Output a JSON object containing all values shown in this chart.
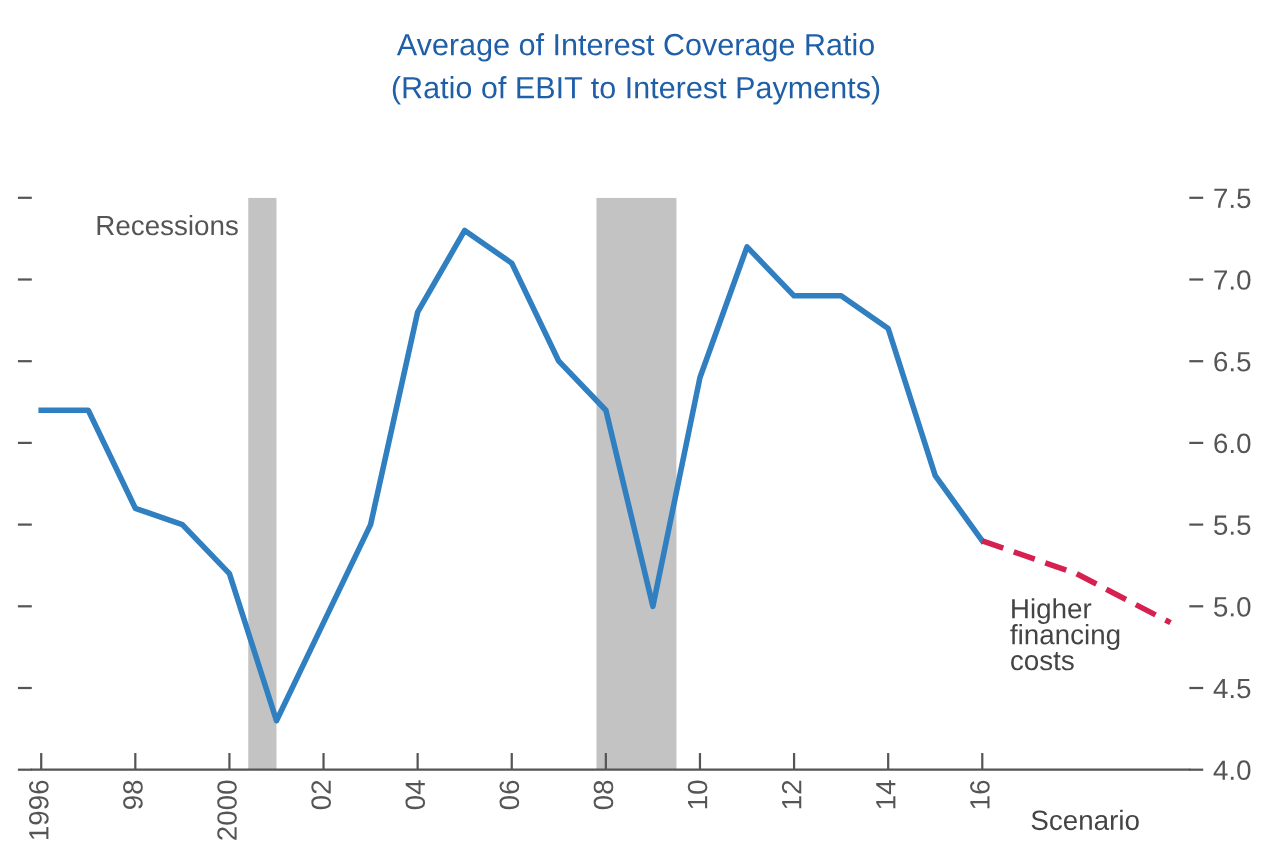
{
  "chart_data": {
    "type": "line",
    "title": "Average of Interest Coverage Ratio",
    "subtitle": "(Ratio of EBIT to Interest Payments)",
    "series": [
      {
        "color": "#2f7fc1",
        "line_style": "solid",
        "x": [
          1996,
          1997,
          1998,
          1999,
          2000,
          2001,
          2002,
          2003,
          2004,
          2005,
          2006,
          2007,
          2008,
          2009,
          2010,
          2011,
          2012,
          2013,
          2014,
          2015,
          2016
        ],
        "values": [
          6.2,
          6.2,
          5.6,
          5.5,
          5.2,
          4.3,
          4.9,
          5.5,
          6.8,
          7.3,
          7.1,
          6.5,
          6.2,
          5.0,
          6.4,
          7.2,
          6.9,
          6.9,
          6.7,
          5.8,
          5.4
        ]
      },
      {
        "color": "#d6204f",
        "line_style": "dashed",
        "x": [
          2016,
          2018,
          2020
        ],
        "values": [
          5.4,
          5.2,
          4.9
        ]
      }
    ],
    "bands": [
      {
        "axis": "x",
        "from": 2000.4,
        "to": 2001.0,
        "label": "Recessions",
        "color": "#c3c3c3"
      },
      {
        "axis": "x",
        "from": 2007.8,
        "to": 2009.5,
        "color": "#c3c3c3"
      }
    ],
    "annotations": [
      "Higher\nfinancing\ncosts",
      "Scenario"
    ],
    "xlim": [
      1995.8,
      2020.4
    ],
    "xticks": [
      {
        "value": 1996,
        "label": "1996"
      },
      {
        "value": 1998,
        "label": "98"
      },
      {
        "value": 2000,
        "label": "2000"
      },
      {
        "value": 2002,
        "label": "02"
      },
      {
        "value": 2004,
        "label": "04"
      },
      {
        "value": 2006,
        "label": "06"
      },
      {
        "value": 2008,
        "label": "08"
      },
      {
        "value": 2010,
        "label": "10"
      },
      {
        "value": 2012,
        "label": "12"
      },
      {
        "value": 2014,
        "label": "14"
      },
      {
        "value": 2016,
        "label": "16"
      }
    ],
    "ylim": [
      4.0,
      7.5
    ],
    "yticks": [
      {
        "value": 4.0,
        "label": "4.0"
      },
      {
        "value": 4.5,
        "label": "4.5"
      },
      {
        "value": 5.0,
        "label": "5.0"
      },
      {
        "value": 5.5,
        "label": "5.5"
      },
      {
        "value": 6.0,
        "label": "6.0"
      },
      {
        "value": 6.5,
        "label": "6.5"
      },
      {
        "value": 7.0,
        "label": "7.0"
      },
      {
        "value": 7.5,
        "label": "7.5"
      }
    ],
    "grid": false,
    "legend": false,
    "marker": "none"
  }
}
